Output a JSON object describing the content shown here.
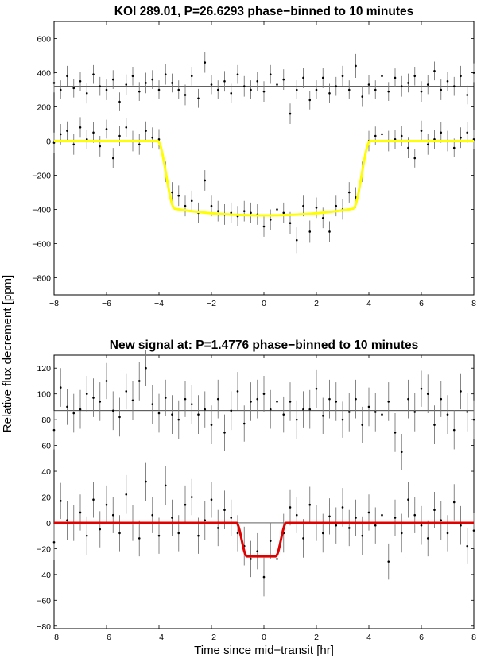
{
  "figure": {
    "ylabel": "Relative flux decrement [ppm]",
    "xlabel": "Time since mid−transit [hr]"
  },
  "chart_data": [
    {
      "type": "scatter",
      "title": "KOI 289.01, P=26.6293 phase−binned to 10 minutes",
      "xlabel": "",
      "ylabel": "",
      "xlim": [
        -8,
        8
      ],
      "ylim": [
        -900,
        700
      ],
      "xticks": [
        -8,
        -6,
        -4,
        -2,
        0,
        2,
        4,
        6,
        8
      ],
      "yticks": [
        -800,
        -600,
        -400,
        -200,
        0,
        200,
        400,
        600
      ],
      "reference_lines": [
        0,
        320
      ],
      "grid": false,
      "legend": "none",
      "model": {
        "kind": "transit",
        "color": "#ffff00",
        "depth": 435,
        "t1": 4.05,
        "t2": 3.4,
        "limb_darkening": 0.45,
        "offset": 0
      },
      "series": [
        {
          "kind": "binned-data",
          "x": [
            -8.0,
            -7.75,
            -7.5,
            -7.25,
            -7.0,
            -6.75,
            -6.5,
            -6.25,
            -6.0,
            -5.75,
            -5.5,
            -5.25,
            -5.0,
            -4.75,
            -4.5,
            -4.25,
            -4.0,
            -3.75,
            -3.5,
            -3.25,
            -3.0,
            -2.75,
            -2.5,
            -2.25,
            -2.0,
            -1.75,
            -1.5,
            -1.25,
            -1.0,
            -0.75,
            -0.5,
            -0.25,
            0.0,
            0.25,
            0.5,
            0.75,
            1.0,
            1.25,
            1.5,
            1.75,
            2.0,
            2.25,
            2.5,
            2.75,
            3.0,
            3.25,
            3.5,
            3.75,
            4.0,
            4.25,
            4.5,
            4.75,
            5.0,
            5.25,
            5.5,
            5.75,
            6.0,
            6.25,
            6.5,
            6.75,
            7.0,
            7.25,
            7.5,
            7.75,
            8.0
          ],
          "y": [
            -10,
            40,
            60,
            -20,
            80,
            10,
            50,
            -30,
            70,
            -100,
            30,
            80,
            0,
            -20,
            60,
            20,
            10,
            -180,
            -300,
            -320,
            -380,
            -350,
            -420,
            -230,
            -380,
            -410,
            -430,
            -420,
            -440,
            -410,
            -420,
            -430,
            -500,
            -460,
            -400,
            -420,
            -480,
            -580,
            -380,
            -530,
            -390,
            -450,
            -530,
            -380,
            -400,
            -300,
            -330,
            -180,
            0,
            30,
            40,
            0,
            10,
            30,
            -40,
            -100,
            60,
            -20,
            10,
            50,
            0,
            -40,
            20,
            50,
            10
          ],
          "err": [
            60,
            60,
            55,
            60,
            60,
            55,
            60,
            60,
            55,
            60,
            60,
            55,
            60,
            60,
            55,
            60,
            60,
            60,
            60,
            60,
            60,
            60,
            60,
            60,
            60,
            60,
            60,
            60,
            60,
            60,
            60,
            60,
            60,
            60,
            60,
            60,
            65,
            75,
            60,
            65,
            60,
            60,
            60,
            60,
            60,
            60,
            60,
            60,
            60,
            55,
            60,
            60,
            55,
            60,
            60,
            55,
            60,
            60,
            55,
            60,
            60,
            55,
            60,
            60,
            55
          ]
        },
        {
          "kind": "binned-data",
          "x": [
            -8.0,
            -7.75,
            -7.5,
            -7.25,
            -7.0,
            -6.75,
            -6.5,
            -6.25,
            -6.0,
            -5.75,
            -5.5,
            -5.25,
            -5.0,
            -4.75,
            -4.5,
            -4.25,
            -4.0,
            -3.75,
            -3.5,
            -3.25,
            -3.0,
            -2.75,
            -2.5,
            -2.25,
            -2.0,
            -1.75,
            -1.5,
            -1.25,
            -1.0,
            -0.75,
            -0.5,
            -0.25,
            0.0,
            0.25,
            0.5,
            0.75,
            1.0,
            1.25,
            1.5,
            1.75,
            2.0,
            2.25,
            2.5,
            2.75,
            3.0,
            3.25,
            3.5,
            3.75,
            4.0,
            4.25,
            4.5,
            4.75,
            5.0,
            5.25,
            5.5,
            5.75,
            6.0,
            6.25,
            6.5,
            6.75,
            7.0,
            7.25,
            7.5,
            7.75,
            8.0
          ],
          "y": [
            340,
            300,
            380,
            310,
            350,
            280,
            390,
            320,
            300,
            360,
            230,
            330,
            380,
            290,
            340,
            360,
            300,
            390,
            340,
            300,
            270,
            380,
            250,
            460,
            330,
            300,
            350,
            280,
            390,
            320,
            300,
            350,
            290,
            390,
            330,
            360,
            160,
            300,
            370,
            240,
            300,
            370,
            280,
            320,
            380,
            300,
            440,
            260,
            330,
            300,
            380,
            290,
            370,
            320,
            340,
            380,
            290,
            330,
            410,
            300,
            350,
            320,
            380,
            270,
            400
          ],
          "err": [
            55,
            55,
            60,
            55,
            55,
            60,
            55,
            55,
            60,
            55,
            55,
            60,
            55,
            55,
            60,
            55,
            55,
            60,
            55,
            55,
            60,
            55,
            55,
            60,
            55,
            55,
            60,
            55,
            55,
            60,
            55,
            55,
            60,
            55,
            55,
            60,
            60,
            55,
            60,
            55,
            55,
            60,
            55,
            55,
            60,
            55,
            70,
            60,
            55,
            55,
            60,
            55,
            55,
            60,
            55,
            55,
            60,
            55,
            55,
            60,
            55,
            55,
            60,
            55,
            55
          ]
        }
      ]
    },
    {
      "type": "scatter",
      "title": "New signal at: P=1.4776 phase−binned to 10 minutes",
      "xlabel": "",
      "ylabel": "",
      "xlim": [
        -8,
        8
      ],
      "ylim": [
        -82,
        130
      ],
      "xticks": [
        -8,
        -6,
        -4,
        -2,
        0,
        2,
        4,
        6,
        8
      ],
      "yticks": [
        -80,
        -60,
        -40,
        -20,
        0,
        20,
        40,
        60,
        80,
        100,
        120
      ],
      "reference_lines": [
        0,
        87
      ],
      "grid": false,
      "legend": "none",
      "model": {
        "kind": "transit",
        "color": "#e00000",
        "depth": 26,
        "t1": 0.95,
        "t2": 0.55,
        "limb_darkening": 0.0,
        "offset": -0.1
      },
      "series": [
        {
          "kind": "binned-data",
          "x": [
            -8.0,
            -7.75,
            -7.5,
            -7.25,
            -7.0,
            -6.75,
            -6.5,
            -6.25,
            -6.0,
            -5.75,
            -5.5,
            -5.25,
            -5.0,
            -4.75,
            -4.5,
            -4.25,
            -4.0,
            -3.75,
            -3.5,
            -3.25,
            -3.0,
            -2.75,
            -2.5,
            -2.25,
            -2.0,
            -1.75,
            -1.5,
            -1.25,
            -1.0,
            -0.75,
            -0.5,
            -0.25,
            0.0,
            0.25,
            0.5,
            0.75,
            1.0,
            1.25,
            1.5,
            1.75,
            2.0,
            2.25,
            2.5,
            2.75,
            3.0,
            3.25,
            3.5,
            3.75,
            4.0,
            4.25,
            4.5,
            4.75,
            5.0,
            5.25,
            5.5,
            5.75,
            6.0,
            6.25,
            6.5,
            6.75,
            7.0,
            7.25,
            7.5,
            7.75,
            8.0
          ],
          "y": [
            -15,
            17,
            2,
            0,
            8,
            -10,
            18,
            -5,
            14,
            6,
            -8,
            22,
            0,
            -12,
            32,
            6,
            -10,
            29,
            4,
            -8,
            14,
            20,
            -10,
            2,
            18,
            -4,
            10,
            4,
            -8,
            -18,
            -28,
            -22,
            -42,
            -14,
            -28,
            -8,
            12,
            6,
            -12,
            14,
            0,
            -8,
            5,
            -2,
            12,
            -4,
            4,
            -10,
            8,
            -2,
            6,
            -30,
            4,
            -8,
            18,
            6,
            -2,
            -12,
            10,
            2,
            -8,
            16,
            -2,
            -18,
            -6
          ],
          "err": [
            14,
            14,
            15,
            14,
            14,
            15,
            14,
            14,
            15,
            14,
            14,
            15,
            14,
            14,
            15,
            14,
            14,
            15,
            14,
            14,
            15,
            14,
            14,
            15,
            14,
            14,
            15,
            14,
            14,
            15,
            14,
            14,
            15,
            14,
            14,
            15,
            14,
            14,
            15,
            14,
            14,
            15,
            14,
            14,
            15,
            14,
            14,
            15,
            14,
            14,
            15,
            14,
            14,
            15,
            14,
            14,
            15,
            14,
            14,
            15,
            14,
            14,
            15,
            14,
            14
          ]
        },
        {
          "kind": "binned-data",
          "x": [
            -8.0,
            -7.75,
            -7.5,
            -7.25,
            -7.0,
            -6.75,
            -6.5,
            -6.25,
            -6.0,
            -5.75,
            -5.5,
            -5.25,
            -5.0,
            -4.75,
            -4.5,
            -4.25,
            -4.0,
            -3.75,
            -3.5,
            -3.25,
            -3.0,
            -2.75,
            -2.5,
            -2.25,
            -2.0,
            -1.75,
            -1.5,
            -1.25,
            -1.0,
            -0.75,
            -0.5,
            -0.25,
            0.0,
            0.25,
            0.5,
            0.75,
            1.0,
            1.25,
            1.5,
            1.75,
            2.0,
            2.25,
            2.5,
            2.75,
            3.0,
            3.25,
            3.5,
            3.75,
            4.0,
            4.25,
            4.5,
            4.75,
            5.0,
            5.25,
            5.5,
            5.75,
            6.0,
            6.25,
            6.5,
            6.75,
            7.0,
            7.25,
            7.5,
            7.75,
            8.0
          ],
          "y": [
            72,
            105,
            90,
            85,
            88,
            100,
            97,
            94,
            110,
            87,
            82,
            102,
            95,
            110,
            120,
            92,
            85,
            97,
            84,
            80,
            96,
            92,
            84,
            88,
            76,
            96,
            70,
            87,
            102,
            77,
            94,
            96,
            100,
            88,
            94,
            84,
            94,
            80,
            88,
            88,
            104,
            83,
            96,
            94,
            80,
            86,
            96,
            76,
            90,
            86,
            84,
            94,
            70,
            55,
            96,
            86,
            104,
            100,
            76,
            96,
            84,
            72,
            102,
            86,
            80
          ],
          "err": [
            15,
            15,
            14,
            15,
            15,
            14,
            15,
            15,
            14,
            15,
            15,
            14,
            15,
            15,
            14,
            15,
            15,
            14,
            15,
            15,
            14,
            15,
            15,
            14,
            15,
            15,
            14,
            15,
            15,
            14,
            15,
            15,
            14,
            15,
            15,
            14,
            15,
            15,
            14,
            15,
            15,
            14,
            15,
            15,
            14,
            15,
            15,
            14,
            15,
            15,
            14,
            15,
            15,
            14,
            15,
            15,
            14,
            15,
            15,
            14,
            15,
            15,
            14,
            15,
            15
          ]
        }
      ]
    }
  ]
}
